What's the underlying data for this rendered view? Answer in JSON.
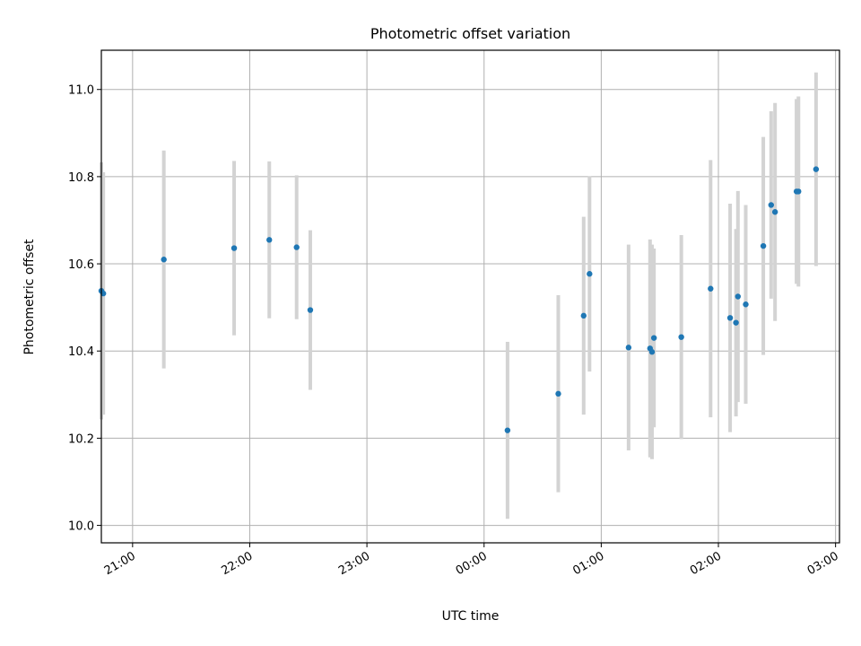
{
  "chart_data": {
    "type": "scatter",
    "title": "Photometric offset variation",
    "xlabel": "UTC time",
    "ylabel": "Photometric offset",
    "grid": true,
    "x_axis": {
      "kind": "time",
      "range": [
        "20:44",
        "03:02"
      ],
      "ticks": [
        "21:00",
        "22:00",
        "23:00",
        "00:00",
        "01:00",
        "02:00",
        "03:00"
      ]
    },
    "y_axis": {
      "range": [
        9.96,
        11.09
      ],
      "ticks": [
        "10.0",
        "10.2",
        "10.4",
        "10.6",
        "10.8",
        "11.0"
      ]
    },
    "colors": {
      "points": "#1f77b4",
      "error_bars": "#d3d3d3",
      "grid": "#b0b0b0"
    },
    "series": [
      {
        "points": [
          {
            "x": "20:44",
            "y": 10.538,
            "err": 0.295
          },
          {
            "x": "20:45",
            "y": 10.532,
            "err": 0.278
          },
          {
            "x": "21:16",
            "y": 10.61,
            "err": 0.25
          },
          {
            "x": "21:52",
            "y": 10.636,
            "err": 0.2
          },
          {
            "x": "22:10",
            "y": 10.655,
            "err": 0.18
          },
          {
            "x": "22:24",
            "y": 10.638,
            "err": 0.165
          },
          {
            "x": "22:31",
            "y": 10.494,
            "err": 0.183
          },
          {
            "x": "00:12",
            "y": 10.218,
            "err": 0.203
          },
          {
            "x": "00:38",
            "y": 10.302,
            "err": 0.226
          },
          {
            "x": "00:51",
            "y": 10.481,
            "err": 0.227
          },
          {
            "x": "00:54",
            "y": 10.577,
            "err": 0.224
          },
          {
            "x": "01:14",
            "y": 10.408,
            "err": 0.236
          },
          {
            "x": "01:25",
            "y": 10.406,
            "err": 0.25
          },
          {
            "x": "01:26",
            "y": 10.398,
            "err": 0.246
          },
          {
            "x": "01:27",
            "y": 10.43,
            "err": 0.205
          },
          {
            "x": "01:41",
            "y": 10.432,
            "err": 0.234
          },
          {
            "x": "01:56",
            "y": 10.543,
            "err": 0.295
          },
          {
            "x": "02:06",
            "y": 10.476,
            "err": 0.262
          },
          {
            "x": "02:09",
            "y": 10.465,
            "err": 0.215
          },
          {
            "x": "02:10",
            "y": 10.525,
            "err": 0.242
          },
          {
            "x": "02:14",
            "y": 10.507,
            "err": 0.228
          },
          {
            "x": "02:23",
            "y": 10.641,
            "err": 0.25
          },
          {
            "x": "02:27",
            "y": 10.735,
            "err": 0.215
          },
          {
            "x": "02:29",
            "y": 10.719,
            "err": 0.25
          },
          {
            "x": "02:40",
            "y": 10.766,
            "err": 0.212
          },
          {
            "x": "02:41",
            "y": 10.766,
            "err": 0.218
          },
          {
            "x": "02:50",
            "y": 10.817,
            "err": 0.222
          }
        ]
      }
    ]
  }
}
